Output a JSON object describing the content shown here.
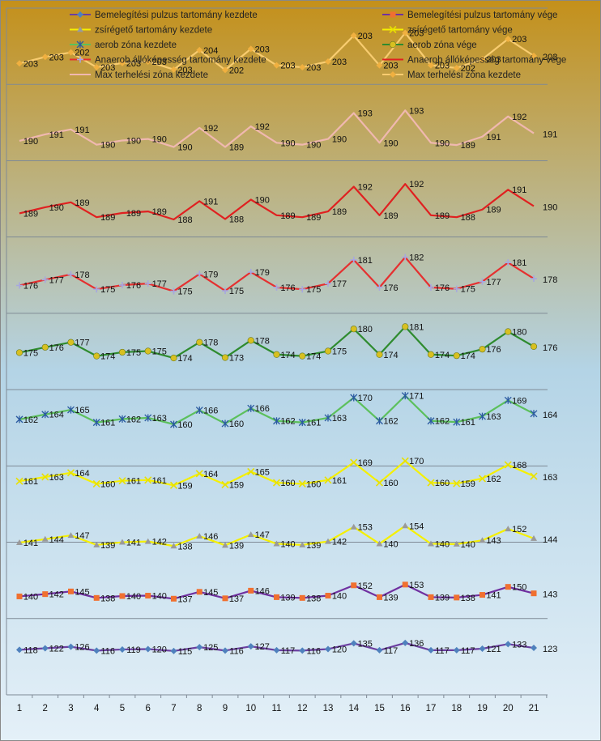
{
  "chart_data": {
    "type": "line",
    "title": "",
    "xlabel": "",
    "ylabel": "",
    "x": [
      "1",
      "2",
      "3",
      "4",
      "5",
      "6",
      "7",
      "8",
      "9",
      "10",
      "11",
      "12",
      "13",
      "14",
      "15",
      "16",
      "17",
      "18",
      "19",
      "20",
      "21"
    ],
    "grid": true,
    "legend_position": "top",
    "background": {
      "top": "#c4901a",
      "mid": "#b4d4e6",
      "bottom": "#e4f0f8"
    },
    "series": [
      {
        "name": "Bemelegítési pulzus tartomány kezdete",
        "color": "#6b3fa0",
        "marker": "diamond",
        "marker_color": "#4f81bd",
        "values": [
          118,
          122,
          126,
          116,
          119,
          120,
          115,
          125,
          116,
          127,
          117,
          116,
          120,
          135,
          117,
          136,
          117,
          117,
          121,
          133,
          123
        ]
      },
      {
        "name": "Bemelegítési pulzus tartomány vége",
        "color": "#7030a0",
        "marker": "square",
        "marker_color": "#f07030",
        "values": [
          140,
          142,
          145,
          138,
          140,
          140,
          137,
          145,
          137,
          146,
          139,
          138,
          140,
          152,
          139,
          153,
          139,
          138,
          141,
          150,
          143
        ]
      },
      {
        "name": "zsírégető tartomány kezdete",
        "color": "#f5f000",
        "marker": "triangle",
        "marker_color": "#9a9a9a",
        "values": [
          141,
          144,
          147,
          139,
          141,
          142,
          138,
          146,
          139,
          147,
          140,
          139,
          142,
          153,
          140,
          154,
          140,
          140,
          143,
          152,
          144
        ]
      },
      {
        "name": "zsírégető tartomány vége",
        "color": "#f5f000",
        "marker": "x",
        "marker_color": "#e8e000",
        "values": [
          161,
          163,
          164,
          160,
          161,
          161,
          159,
          164,
          159,
          165,
          160,
          160,
          161,
          169,
          160,
          170,
          160,
          159,
          162,
          168,
          163
        ]
      },
      {
        "name": "aerob zóna kezdete",
        "color": "#5cc05c",
        "marker": "star",
        "marker_color": "#2a5aa0",
        "values": [
          162,
          164,
          165,
          161,
          162,
          163,
          160,
          166,
          160,
          166,
          162,
          161,
          163,
          170,
          162,
          171,
          162,
          161,
          163,
          169,
          164
        ]
      },
      {
        "name": "aerob zóna vége",
        "color": "#2e8b2e",
        "marker": "circle",
        "marker_color": "#d8c020",
        "values": [
          175,
          176,
          177,
          174,
          175,
          175,
          174,
          178,
          173,
          178,
          174,
          174,
          175,
          180,
          174,
          181,
          174,
          174,
          176,
          180,
          176
        ]
      },
      {
        "name": "Anaerob állóképesség tartomány kezdete",
        "color": "#e53030",
        "marker": "plus",
        "marker_color": "#a7a7e0",
        "values": [
          176,
          177,
          178,
          175,
          176,
          177,
          175,
          179,
          175,
          179,
          176,
          175,
          177,
          181,
          176,
          182,
          176,
          175,
          177,
          181,
          178
        ]
      },
      {
        "name": "Anaerob állóképesség tartomány vége",
        "color": "#e02020",
        "marker": "dash",
        "marker_color": "#e02020",
        "values": [
          189,
          190,
          189,
          189,
          189,
          189,
          188,
          191,
          188,
          190,
          189,
          189,
          189,
          192,
          189,
          192,
          189,
          188,
          189,
          191,
          190
        ]
      },
      {
        "name": "Max terhelési zóna kezdete",
        "color": "#f0b8b0",
        "marker": "dash",
        "marker_color": "#f0b8b0",
        "values": [
          190,
          191,
          191,
          190,
          190,
          190,
          190,
          192,
          189,
          192,
          190,
          190,
          190,
          193,
          190,
          193,
          190,
          189,
          191,
          192,
          191
        ]
      },
      {
        "name": "Max terhelési zóna kezdete",
        "color": "#f8cc70",
        "marker": "diamond",
        "marker_color": "#f0b040",
        "values": [
          203,
          203,
          202,
          203,
          203,
          203,
          203,
          204,
          202,
          203,
          203,
          203,
          203,
          203,
          203,
          203,
          203,
          202,
          203,
          203,
          203
        ]
      }
    ]
  }
}
